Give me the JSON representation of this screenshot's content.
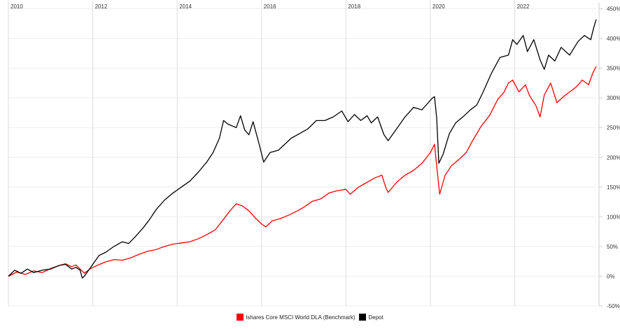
{
  "chart_data": {
    "type": "line",
    "x_ticks": [
      "2010",
      "2012",
      "2014",
      "2016",
      "2018",
      "2020",
      "2022"
    ],
    "x_range": [
      2010.0,
      2023.93
    ],
    "y_ticks": [
      "-50%",
      "0%",
      "50%",
      "100%",
      "150%",
      "200%",
      "250%",
      "300%",
      "350%",
      "400%",
      "450%"
    ],
    "y_range": [
      -50,
      460
    ],
    "grid": true,
    "legend_position": "bottom-center",
    "series": [
      {
        "name": "Ishares Core MSCI World DLA (Benchmark)",
        "color": "#ff0000",
        "points": [
          [
            2010.0,
            0
          ],
          [
            2010.2,
            7
          ],
          [
            2010.4,
            3
          ],
          [
            2010.6,
            9
          ],
          [
            2010.8,
            6
          ],
          [
            2011.0,
            13
          ],
          [
            2011.2,
            18
          ],
          [
            2011.35,
            21
          ],
          [
            2011.5,
            16
          ],
          [
            2011.6,
            19
          ],
          [
            2011.7,
            12
          ],
          [
            2011.8,
            5
          ],
          [
            2011.95,
            13
          ],
          [
            2012.1,
            18
          ],
          [
            2012.3,
            24
          ],
          [
            2012.5,
            28
          ],
          [
            2012.7,
            27
          ],
          [
            2012.9,
            31
          ],
          [
            2013.1,
            37
          ],
          [
            2013.3,
            42
          ],
          [
            2013.5,
            45
          ],
          [
            2013.7,
            50
          ],
          [
            2013.9,
            54
          ],
          [
            2014.1,
            56
          ],
          [
            2014.3,
            58
          ],
          [
            2014.5,
            63
          ],
          [
            2014.7,
            70
          ],
          [
            2014.9,
            78
          ],
          [
            2015.1,
            96
          ],
          [
            2015.25,
            110
          ],
          [
            2015.4,
            122
          ],
          [
            2015.55,
            118
          ],
          [
            2015.7,
            110
          ],
          [
            2015.85,
            98
          ],
          [
            2016.0,
            88
          ],
          [
            2016.1,
            83
          ],
          [
            2016.25,
            93
          ],
          [
            2016.45,
            97
          ],
          [
            2016.65,
            103
          ],
          [
            2016.85,
            110
          ],
          [
            2017.0,
            116
          ],
          [
            2017.2,
            126
          ],
          [
            2017.4,
            130
          ],
          [
            2017.6,
            140
          ],
          [
            2017.8,
            144
          ],
          [
            2018.0,
            146
          ],
          [
            2018.1,
            138
          ],
          [
            2018.3,
            150
          ],
          [
            2018.5,
            158
          ],
          [
            2018.7,
            166
          ],
          [
            2018.85,
            170
          ],
          [
            2018.95,
            148
          ],
          [
            2019.0,
            141
          ],
          [
            2019.2,
            158
          ],
          [
            2019.4,
            170
          ],
          [
            2019.6,
            178
          ],
          [
            2019.8,
            190
          ],
          [
            2020.0,
            208
          ],
          [
            2020.1,
            222
          ],
          [
            2020.15,
            185
          ],
          [
            2020.22,
            138
          ],
          [
            2020.35,
            170
          ],
          [
            2020.5,
            186
          ],
          [
            2020.7,
            198
          ],
          [
            2020.85,
            208
          ],
          [
            2021.0,
            228
          ],
          [
            2021.2,
            252
          ],
          [
            2021.4,
            270
          ],
          [
            2021.6,
            298
          ],
          [
            2021.75,
            310
          ],
          [
            2021.85,
            325
          ],
          [
            2021.95,
            330
          ],
          [
            2022.1,
            310
          ],
          [
            2022.25,
            322
          ],
          [
            2022.35,
            304
          ],
          [
            2022.5,
            287
          ],
          [
            2022.6,
            268
          ],
          [
            2022.7,
            305
          ],
          [
            2022.85,
            325
          ],
          [
            2023.0,
            292
          ],
          [
            2023.15,
            302
          ],
          [
            2023.3,
            310
          ],
          [
            2023.45,
            318
          ],
          [
            2023.6,
            330
          ],
          [
            2023.75,
            322
          ],
          [
            2023.85,
            342
          ],
          [
            2023.93,
            353
          ]
        ]
      },
      {
        "name": "Depot",
        "color": "#000000",
        "points": [
          [
            2010.0,
            0
          ],
          [
            2010.15,
            10
          ],
          [
            2010.3,
            5
          ],
          [
            2010.45,
            12
          ],
          [
            2010.6,
            6
          ],
          [
            2010.8,
            10
          ],
          [
            2011.0,
            12
          ],
          [
            2011.2,
            18
          ],
          [
            2011.35,
            20
          ],
          [
            2011.5,
            12
          ],
          [
            2011.6,
            15
          ],
          [
            2011.7,
            10
          ],
          [
            2011.75,
            -3
          ],
          [
            2011.8,
            0
          ],
          [
            2011.9,
            10
          ],
          [
            2012.0,
            20
          ],
          [
            2012.15,
            35
          ],
          [
            2012.3,
            40
          ],
          [
            2012.5,
            50
          ],
          [
            2012.7,
            58
          ],
          [
            2012.85,
            55
          ],
          [
            2013.0,
            66
          ],
          [
            2013.2,
            82
          ],
          [
            2013.35,
            96
          ],
          [
            2013.5,
            112
          ],
          [
            2013.7,
            128
          ],
          [
            2013.9,
            140
          ],
          [
            2014.1,
            150
          ],
          [
            2014.3,
            160
          ],
          [
            2014.5,
            175
          ],
          [
            2014.7,
            192
          ],
          [
            2014.85,
            208
          ],
          [
            2015.0,
            232
          ],
          [
            2015.1,
            262
          ],
          [
            2015.2,
            256
          ],
          [
            2015.4,
            250
          ],
          [
            2015.5,
            270
          ],
          [
            2015.6,
            246
          ],
          [
            2015.7,
            238
          ],
          [
            2015.8,
            260
          ],
          [
            2015.95,
            220
          ],
          [
            2016.05,
            192
          ],
          [
            2016.2,
            208
          ],
          [
            2016.4,
            212
          ],
          [
            2016.55,
            222
          ],
          [
            2016.7,
            232
          ],
          [
            2016.9,
            240
          ],
          [
            2017.1,
            248
          ],
          [
            2017.3,
            262
          ],
          [
            2017.5,
            262
          ],
          [
            2017.7,
            268
          ],
          [
            2017.9,
            278
          ],
          [
            2018.05,
            260
          ],
          [
            2018.2,
            272
          ],
          [
            2018.35,
            262
          ],
          [
            2018.5,
            270
          ],
          [
            2018.6,
            258
          ],
          [
            2018.75,
            268
          ],
          [
            2018.9,
            238
          ],
          [
            2019.0,
            228
          ],
          [
            2019.2,
            248
          ],
          [
            2019.4,
            268
          ],
          [
            2019.6,
            284
          ],
          [
            2019.8,
            280
          ],
          [
            2019.95,
            292
          ],
          [
            2020.05,
            300
          ],
          [
            2020.1,
            302
          ],
          [
            2020.15,
            265
          ],
          [
            2020.2,
            190
          ],
          [
            2020.3,
            205
          ],
          [
            2020.45,
            240
          ],
          [
            2020.6,
            258
          ],
          [
            2020.8,
            270
          ],
          [
            2020.95,
            280
          ],
          [
            2021.1,
            288
          ],
          [
            2021.25,
            310
          ],
          [
            2021.45,
            342
          ],
          [
            2021.65,
            368
          ],
          [
            2021.85,
            372
          ],
          [
            2021.95,
            398
          ],
          [
            2022.05,
            390
          ],
          [
            2022.2,
            405
          ],
          [
            2022.3,
            378
          ],
          [
            2022.45,
            398
          ],
          [
            2022.6,
            364
          ],
          [
            2022.7,
            348
          ],
          [
            2022.8,
            372
          ],
          [
            2022.95,
            362
          ],
          [
            2023.1,
            385
          ],
          [
            2023.3,
            372
          ],
          [
            2023.5,
            395
          ],
          [
            2023.65,
            405
          ],
          [
            2023.8,
            398
          ],
          [
            2023.87,
            418
          ],
          [
            2023.93,
            432
          ]
        ]
      }
    ]
  }
}
